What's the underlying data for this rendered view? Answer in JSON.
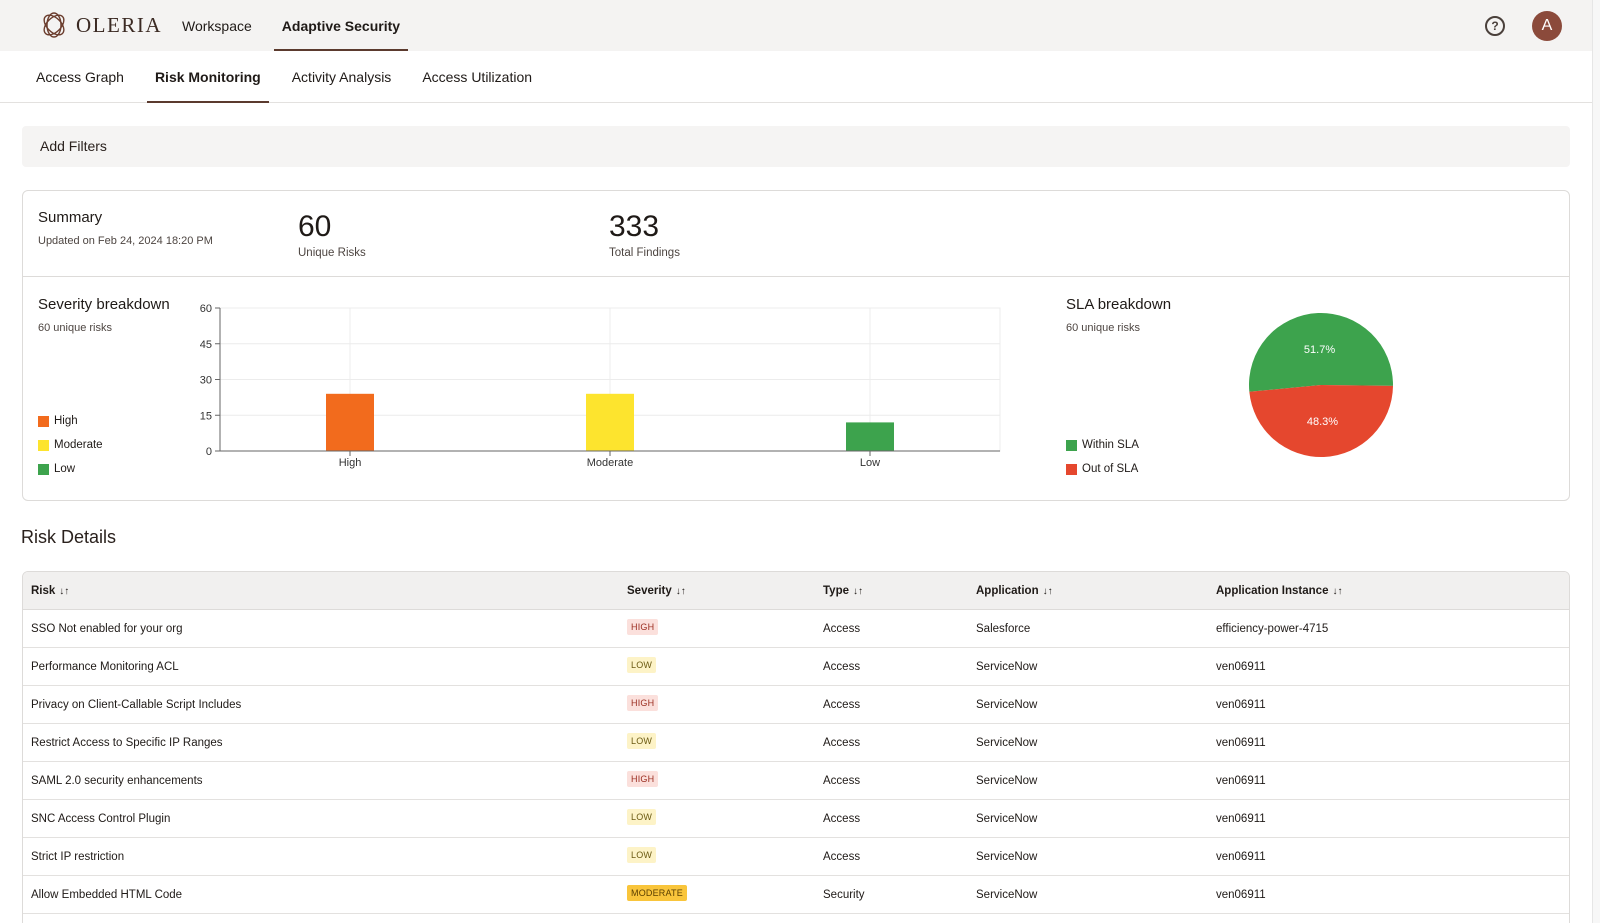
{
  "brand": {
    "name": "OLERIA"
  },
  "top_nav": [
    {
      "label": "Workspace",
      "active": false
    },
    {
      "label": "Adaptive Security",
      "active": true
    }
  ],
  "user": {
    "initial": "A"
  },
  "sub_nav": [
    {
      "label": "Access Graph",
      "active": false
    },
    {
      "label": "Risk Monitoring",
      "active": true
    },
    {
      "label": "Activity Analysis",
      "active": false
    },
    {
      "label": "Access Utilization",
      "active": false
    }
  ],
  "filters": {
    "label": "Add Filters"
  },
  "summary": {
    "title": "Summary",
    "updated": "Updated on Feb 24, 2024 18:20 PM",
    "metrics": [
      {
        "value": "60",
        "label": "Unique Risks"
      },
      {
        "value": "333",
        "label": "Total Findings"
      }
    ]
  },
  "severity": {
    "title": "Severity breakdown",
    "subtitle": "60 unique risks",
    "legend": [
      {
        "label": "High",
        "color": "#f26b1d"
      },
      {
        "label": "Moderate",
        "color": "#fde42e"
      },
      {
        "label": "Low",
        "color": "#3da34d"
      }
    ]
  },
  "sla": {
    "title": "SLA breakdown",
    "subtitle": "60 unique risks",
    "legend": [
      {
        "label": "Within SLA",
        "color": "#3da34d"
      },
      {
        "label": "Out of SLA",
        "color": "#e5472e"
      }
    ]
  },
  "chart_data": [
    {
      "type": "bar",
      "categories": [
        "High",
        "Moderate",
        "Low"
      ],
      "values": [
        24,
        24,
        12
      ],
      "colors": [
        "#f26b1d",
        "#fde42e",
        "#3da34d"
      ],
      "yticks": [
        0,
        15,
        30,
        45,
        60
      ],
      "ylim": [
        0,
        60
      ],
      "grid": true
    },
    {
      "type": "pie",
      "labels": [
        "Within SLA",
        "Out of SLA"
      ],
      "values": [
        51.7,
        48.3
      ],
      "value_labels": [
        "51.7%",
        "48.3%"
      ],
      "colors": [
        "#3da34d",
        "#e5472e"
      ]
    }
  ],
  "risk_details": {
    "heading": "Risk Details",
    "columns": [
      "Risk",
      "Severity",
      "Type",
      "Application",
      "Application Instance"
    ],
    "rows": [
      {
        "risk": "SSO Not enabled for your org",
        "severity": "HIGH",
        "type": "Access",
        "application": "Salesforce",
        "instance": "efficiency-power-4715"
      },
      {
        "risk": "Performance Monitoring ACL",
        "severity": "LOW",
        "type": "Access",
        "application": "ServiceNow",
        "instance": "ven06911"
      },
      {
        "risk": "Privacy on Client-Callable Script Includes",
        "severity": "HIGH",
        "type": "Access",
        "application": "ServiceNow",
        "instance": "ven06911"
      },
      {
        "risk": "Restrict Access to Specific IP Ranges",
        "severity": "LOW",
        "type": "Access",
        "application": "ServiceNow",
        "instance": "ven06911"
      },
      {
        "risk": "SAML 2.0 security enhancements",
        "severity": "HIGH",
        "type": "Access",
        "application": "ServiceNow",
        "instance": "ven06911"
      },
      {
        "risk": "SNC Access Control Plugin",
        "severity": "LOW",
        "type": "Access",
        "application": "ServiceNow",
        "instance": "ven06911"
      },
      {
        "risk": "Strict IP restriction",
        "severity": "LOW",
        "type": "Access",
        "application": "ServiceNow",
        "instance": "ven06911"
      },
      {
        "risk": "Allow Embedded HTML Code",
        "severity": "MODERATE",
        "type": "Security",
        "application": "ServiceNow",
        "instance": "ven06911"
      }
    ]
  }
}
